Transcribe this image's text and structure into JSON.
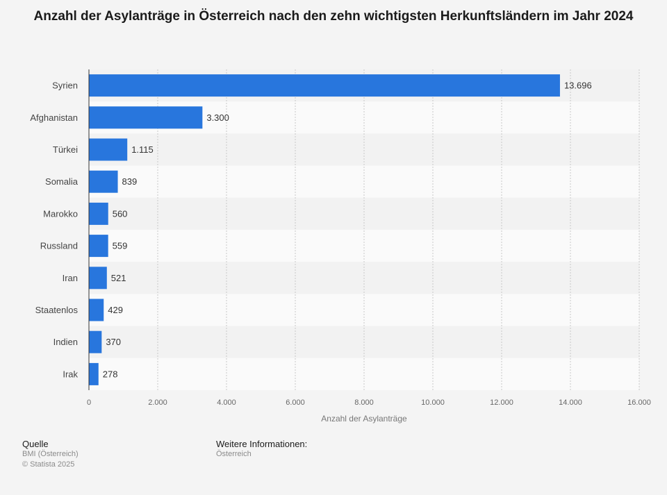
{
  "chart_data": {
    "type": "bar",
    "orientation": "horizontal",
    "title": "Anzahl der Asylanträge in Österreich nach den zehn wichtigsten Herkunftsländern im Jahr 2024",
    "xlabel": "Anzahl der Asylanträge",
    "ylabel": "",
    "categories": [
      "Syrien",
      "Afghanistan",
      "Türkei",
      "Somalia",
      "Marokko",
      "Russland",
      "Iran",
      "Staatenlos",
      "Indien",
      "Irak"
    ],
    "values": [
      13696,
      3300,
      1115,
      839,
      560,
      559,
      521,
      429,
      370,
      278
    ],
    "value_labels": [
      "13.696",
      "3.300",
      "1.115",
      "839",
      "560",
      "559",
      "521",
      "429",
      "370",
      "278"
    ],
    "xlim": [
      0,
      16000
    ],
    "xticks": [
      0,
      2000,
      4000,
      6000,
      8000,
      10000,
      12000,
      14000,
      16000
    ],
    "xtick_labels": [
      "0",
      "2.000",
      "4.000",
      "6.000",
      "8.000",
      "10.000",
      "12.000",
      "14.000",
      "16.000"
    ],
    "grid": true,
    "bar_color": "#2876dd"
  },
  "footer": {
    "source_heading": "Quelle",
    "source_name": "BMI (Österreich)",
    "copyright": "© Statista 2025",
    "info_heading": "Weitere Informationen:",
    "info_text": "Österreich"
  }
}
